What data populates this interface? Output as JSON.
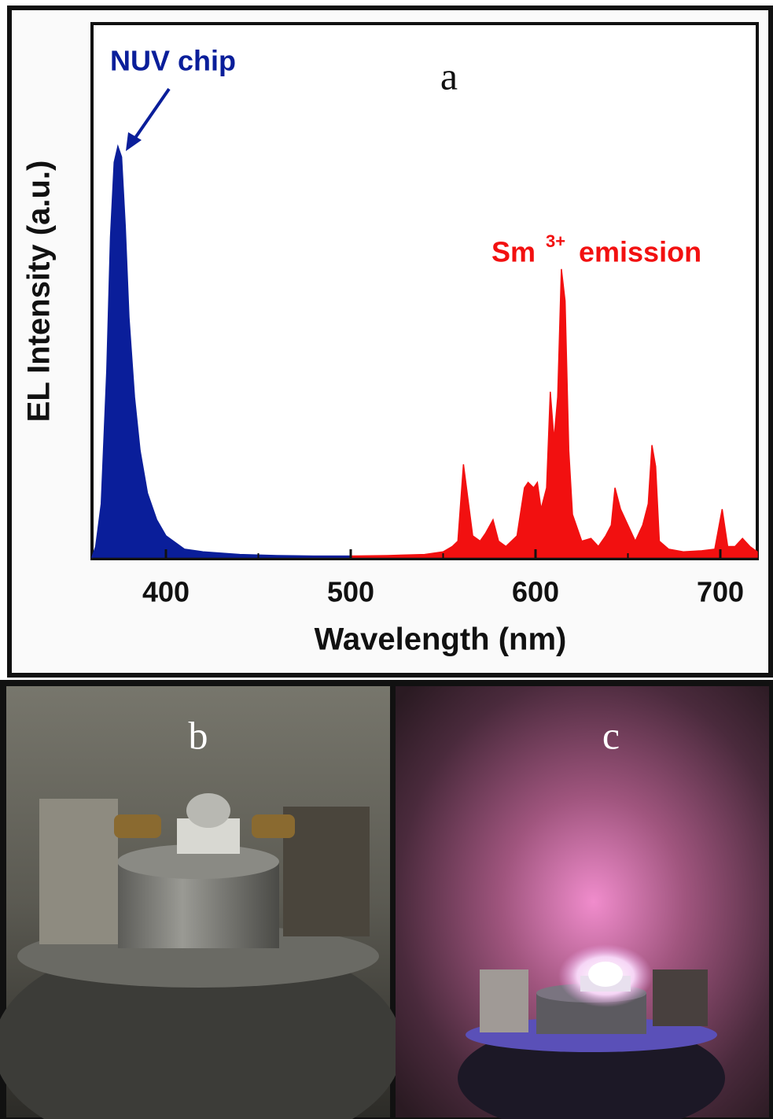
{
  "chart_data": {
    "type": "area",
    "panel_label": "a",
    "xlabel": "Wavelength (nm)",
    "ylabel": "EL Intensity (a.u.)",
    "xlim": [
      360,
      720
    ],
    "ylim": [
      0,
      1
    ],
    "xticks": [
      400,
      500,
      600,
      700
    ],
    "xminorticks": [
      450,
      550,
      650
    ],
    "annotations": {
      "chip": "NUV chip",
      "sm": "Sm",
      "sm_sup": "3+",
      "emission": "emission"
    },
    "series": [
      {
        "color": "#0a1e9a",
        "x": [
          360,
          362,
          365,
          368,
          370,
          372,
          374,
          376,
          378,
          380,
          383,
          386,
          390,
          395,
          400,
          410,
          420,
          440,
          460,
          480,
          500
        ],
        "values": [
          0.0,
          0.02,
          0.1,
          0.35,
          0.6,
          0.74,
          0.77,
          0.75,
          0.62,
          0.45,
          0.3,
          0.2,
          0.12,
          0.07,
          0.04,
          0.015,
          0.01,
          0.005,
          0.003,
          0.002,
          0.002
        ]
      },
      {
        "color": "#f21010",
        "x": [
          500,
          520,
          540,
          550,
          555,
          558,
          561,
          566,
          570,
          573,
          577,
          580,
          584,
          590,
          594,
          596,
          599,
          601,
          603,
          606,
          608,
          610,
          612,
          614,
          616,
          618,
          620,
          625,
          630,
          634,
          638,
          641,
          643,
          646,
          650,
          654,
          658,
          661,
          663,
          665,
          667,
          672,
          680,
          690,
          697,
          701,
          704,
          708,
          712,
          716,
          720
        ],
        "values": [
          0.002,
          0.003,
          0.005,
          0.01,
          0.02,
          0.03,
          0.174,
          0.04,
          0.03,
          0.045,
          0.07,
          0.03,
          0.02,
          0.04,
          0.13,
          0.14,
          0.13,
          0.14,
          0.09,
          0.13,
          0.31,
          0.22,
          0.3,
          0.54,
          0.48,
          0.2,
          0.08,
          0.03,
          0.035,
          0.02,
          0.04,
          0.06,
          0.13,
          0.09,
          0.06,
          0.03,
          0.06,
          0.1,
          0.21,
          0.17,
          0.03,
          0.015,
          0.01,
          0.012,
          0.015,
          0.09,
          0.02,
          0.02,
          0.035,
          0.02,
          0.01
        ]
      }
    ]
  },
  "photos": [
    {
      "label": "b"
    },
    {
      "label": "c"
    }
  ]
}
